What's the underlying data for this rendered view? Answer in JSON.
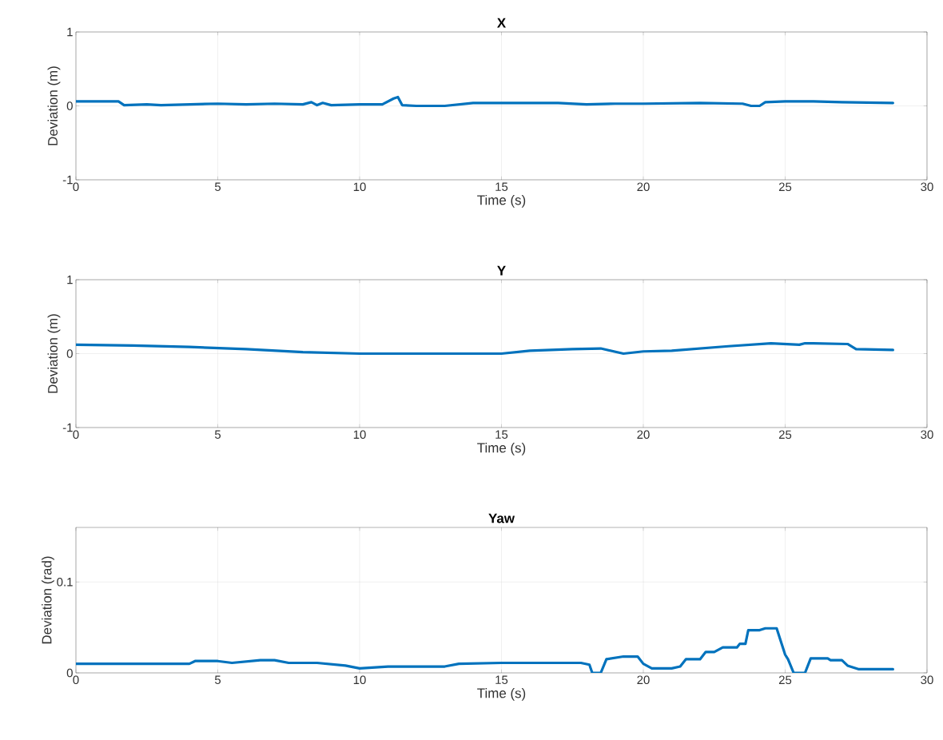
{
  "chart_data": [
    {
      "type": "line",
      "title": "X",
      "xlabel": "Time (s)",
      "ylabel": "Deviation (m)",
      "xlim": [
        0,
        30
      ],
      "xticks": [
        0,
        5,
        10,
        15,
        20,
        25,
        30
      ],
      "ylim": [
        -1,
        1
      ],
      "yticks": [
        -1,
        0,
        1
      ],
      "grid": true,
      "marker": "none",
      "line_style": "solid",
      "series": [
        {
          "color": "#0072bd",
          "x": [
            0,
            1.5,
            1.7,
            2.5,
            3,
            4,
            5,
            6,
            7,
            8,
            8.3,
            8.5,
            8.7,
            9,
            10,
            10.8,
            11.2,
            11.35,
            11.5,
            12,
            13,
            14,
            15,
            17,
            18,
            19,
            20,
            22,
            23.5,
            23.8,
            24.1,
            24.3,
            25,
            26,
            27,
            28.8
          ],
          "values": [
            0.06,
            0.06,
            0.01,
            0.02,
            0.01,
            0.02,
            0.03,
            0.02,
            0.03,
            0.02,
            0.05,
            0.01,
            0.04,
            0.01,
            0.02,
            0.02,
            0.1,
            0.12,
            0.01,
            0,
            0,
            0.04,
            0.04,
            0.04,
            0.02,
            0.03,
            0.03,
            0.04,
            0.03,
            0,
            0,
            0.05,
            0.06,
            0.06,
            0.05,
            0.04
          ]
        }
      ]
    },
    {
      "type": "line",
      "title": "Y",
      "xlabel": "Time (s)",
      "ylabel": "Deviation (m)",
      "xlim": [
        0,
        30
      ],
      "xticks": [
        0,
        5,
        10,
        15,
        20,
        25,
        30
      ],
      "ylim": [
        -1,
        1
      ],
      "yticks": [
        -1,
        0,
        1
      ],
      "grid": true,
      "marker": "none",
      "line_style": "solid",
      "series": [
        {
          "color": "#0072bd",
          "x": [
            0,
            2,
            4,
            6,
            8,
            10,
            12,
            15,
            16,
            17.5,
            18.5,
            19.3,
            20,
            21,
            22,
            23,
            24.5,
            25.5,
            25.7,
            26,
            27.2,
            27.5,
            28.8
          ],
          "values": [
            0.12,
            0.11,
            0.09,
            0.06,
            0.02,
            0,
            0,
            0,
            0.04,
            0.06,
            0.07,
            0,
            0.03,
            0.04,
            0.07,
            0.1,
            0.14,
            0.12,
            0.14,
            0.14,
            0.13,
            0.06,
            0.05
          ]
        }
      ]
    },
    {
      "type": "line",
      "title": "Yaw",
      "xlabel": "Time (s)",
      "ylabel": "Deviation (rad)",
      "xlim": [
        0,
        30
      ],
      "xticks": [
        0,
        5,
        10,
        15,
        20,
        25,
        30
      ],
      "ylim": [
        0,
        0.16
      ],
      "yticks": [
        0,
        0.1
      ],
      "grid": true,
      "marker": "none",
      "line_style": "solid",
      "series": [
        {
          "color": "#0072bd",
          "x": [
            0,
            4,
            4.2,
            5,
            5.5,
            6.5,
            7,
            7.5,
            8.5,
            9.5,
            10,
            11,
            13,
            13.5,
            15,
            17.8,
            18.1,
            18.2,
            18.5,
            18.7,
            19.3,
            19.8,
            20,
            20.3,
            21,
            21.3,
            21.5,
            22,
            22.2,
            22.5,
            22.8,
            23.3,
            23.4,
            23.6,
            23.7,
            24.1,
            24.3,
            24.7,
            25,
            25.1,
            25.3,
            25.7,
            25.9,
            26.5,
            26.6,
            27,
            27.2,
            27.6,
            28.8
          ],
          "values": [
            0.01,
            0.01,
            0.013,
            0.013,
            0.011,
            0.014,
            0.014,
            0.011,
            0.011,
            0.008,
            0.005,
            0.007,
            0.007,
            0.01,
            0.011,
            0.011,
            0.009,
            0,
            0,
            0.015,
            0.018,
            0.018,
            0.01,
            0.005,
            0.005,
            0.007,
            0.015,
            0.015,
            0.023,
            0.023,
            0.028,
            0.028,
            0.032,
            0.032,
            0.047,
            0.047,
            0.049,
            0.049,
            0.02,
            0.015,
            0,
            0,
            0.016,
            0.016,
            0.014,
            0.014,
            0.008,
            0.004,
            0.004
          ]
        }
      ]
    }
  ]
}
